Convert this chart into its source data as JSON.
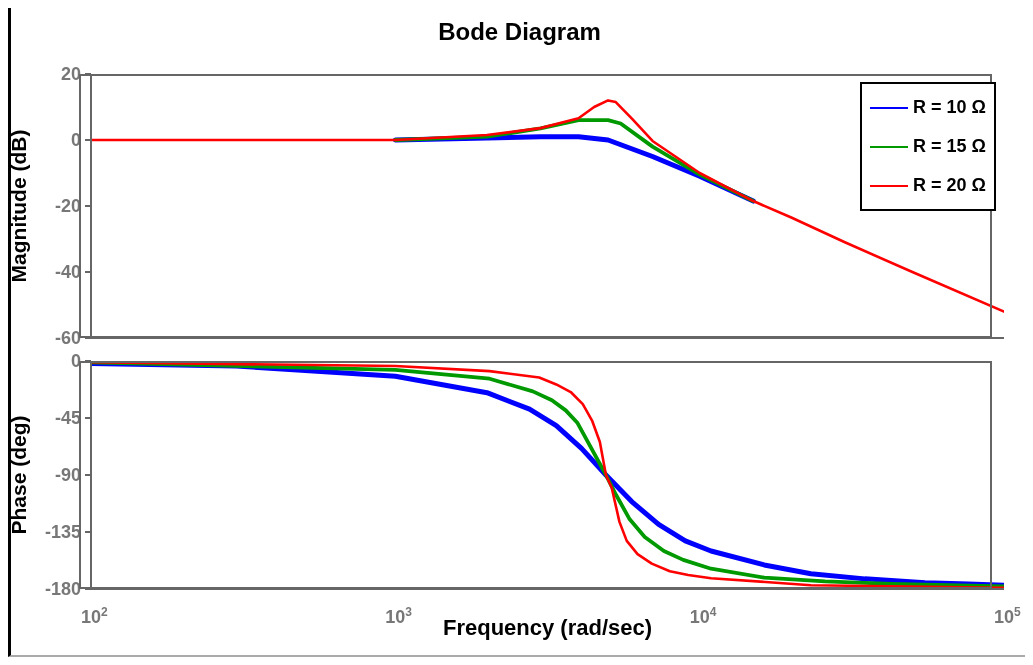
{
  "chart_data": [
    {
      "type": "line",
      "title": "Bode Diagram",
      "ylabel": "Magnitude (dB)",
      "xlim": [
        100,
        100000
      ],
      "xticks": [
        {
          "value": 100,
          "label": null
        },
        {
          "value": 1000,
          "label": null
        },
        {
          "value": 10000,
          "label": null
        },
        {
          "value": 100000,
          "label": null
        }
      ],
      "ylim": [
        -60,
        20
      ],
      "yticks": [
        -60,
        -40,
        -20,
        0,
        20
      ],
      "log": "x",
      "tick_labels": "y",
      "legend": "top right",
      "series": [
        {
          "name": "R = 10 Ω",
          "color": "#0000ff",
          "x": [
            1000,
            2000,
            3000,
            4000,
            5000,
            7000,
            10000,
            15000
          ],
          "values": [
            0,
            0.6,
            1,
            1,
            0,
            -5,
            -11,
            -18.5
          ]
        },
        {
          "name": "R = 15 Ω",
          "color": "#009900",
          "x": [
            1000,
            2000,
            3000,
            4000,
            5000,
            5500,
            7000,
            10000,
            15000
          ],
          "values": [
            0,
            1,
            3.5,
            6,
            6,
            5,
            -2,
            -10.5,
            -18.5
          ]
        },
        {
          "name": "R = 20 Ω",
          "color": "#ff0000",
          "x": [
            100,
            1000,
            2000,
            3000,
            4000,
            4500,
            5000,
            5300,
            6000,
            7000,
            10000,
            15000,
            20000,
            30000,
            50000,
            100000
          ],
          "values": [
            0,
            0,
            1.5,
            3.6,
            6.6,
            10,
            12,
            11.5,
            6.4,
            -0.3,
            -10,
            -18.5,
            -23.5,
            -31,
            -40,
            -52
          ]
        }
      ]
    },
    {
      "type": "line",
      "xlabel": "Frequency  (rad/sec)",
      "ylabel": "Phase (deg)",
      "xlim": [
        100,
        100000
      ],
      "xticks": [
        {
          "value": 100,
          "label": "10$^{2}$"
        },
        {
          "value": 1000,
          "label": "10$^{3}$"
        },
        {
          "value": 10000,
          "label": "10$^{4}$"
        },
        {
          "value": 100000,
          "label": "10$^{5}$"
        }
      ],
      "ylim": [
        -180,
        0
      ],
      "yticks": [
        -180,
        -135,
        -90,
        -45,
        0
      ],
      "log": "x",
      "series": [
        {
          "color": "#0000ff",
          "x": [
            100,
            300,
            1000,
            2000,
            2760,
            3380,
            4090,
            4920,
            5980,
            7330,
            8970,
            10900,
            16300,
            23200,
            34900,
            55000,
            76400,
            100000
          ],
          "values": [
            -2,
            -4,
            -12,
            -25,
            -38,
            -51,
            -69,
            -90,
            -111,
            -129,
            -142,
            -150,
            -161,
            -168,
            -172,
            -175,
            -176,
            -177
          ]
        },
        {
          "color": "#009900",
          "x": [
            100,
            1000,
            2040,
            2830,
            3270,
            3630,
            3970,
            4340,
            4920,
            5320,
            5890,
            6600,
            7630,
            8830,
            10900,
            16300,
            25800,
            42600,
            100000
          ],
          "values": [
            -1,
            -7,
            -14,
            -24,
            -31,
            -39,
            -49,
            -66,
            -90,
            -106,
            -125,
            -139,
            -150,
            -157,
            -164,
            -171,
            -174,
            -176,
            -178
          ]
        },
        {
          "color": "#ff0000",
          "x": [
            100,
            1000,
            2040,
            2970,
            3380,
            3770,
            4130,
            4430,
            4700,
            4920,
            5140,
            5450,
            5760,
            6250,
            6960,
            7980,
            9170,
            10900,
            23200,
            100000
          ],
          "values": [
            -1,
            -4,
            -8,
            -13,
            -18.5,
            -24.5,
            -34,
            -47,
            -64,
            -90,
            -100,
            -127,
            -142,
            -152.5,
            -160,
            -166,
            -169,
            -171.5,
            -177,
            -179
          ]
        }
      ]
    }
  ]
}
